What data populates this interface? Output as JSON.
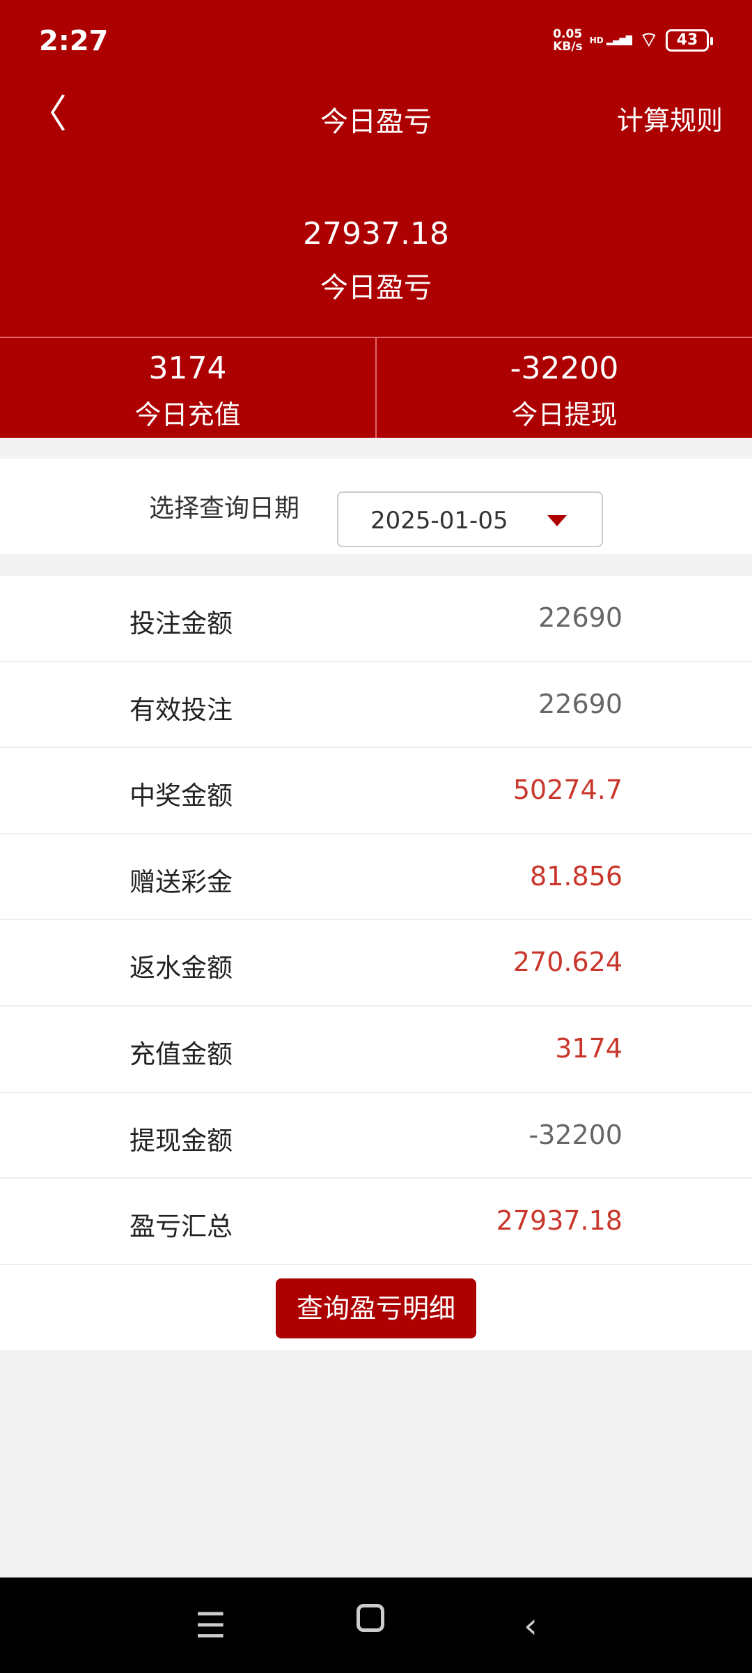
{
  "status_bar": {
    "time": "2:27",
    "net_speed": "0.05",
    "net_unit": "KB/s",
    "hd": "HD",
    "battery": "43"
  },
  "header": {
    "title": "今日盈亏",
    "rule_label": "计算规则"
  },
  "summary": {
    "value": "27937.18",
    "label": "今日盈亏"
  },
  "stats": [
    {
      "value": "3174",
      "label": "今日充值"
    },
    {
      "value": "-32200",
      "label": "今日提现"
    }
  ],
  "date_filter": {
    "label": "选择查询日期",
    "value": "2025-01-05"
  },
  "rows": [
    {
      "label": "投注金额",
      "value": "22690",
      "color": "#666666"
    },
    {
      "label": "有效投注",
      "value": "22690",
      "color": "#666666"
    },
    {
      "label": "中奖金额",
      "value": "50274.7",
      "color": "#c9372c"
    },
    {
      "label": "赠送彩金",
      "value": "81.856",
      "color": "#c9372c"
    },
    {
      "label": "返水金额",
      "value": "270.624",
      "color": "#c9372c"
    },
    {
      "label": "充值金额",
      "value": "3174",
      "color": "#c9372c"
    },
    {
      "label": "提现金额",
      "value": "-32200",
      "color": "#666666"
    },
    {
      "label": "盈亏汇总",
      "value": "27937.18",
      "color": "#c9372c"
    }
  ],
  "detail_button": "查询盈亏明细",
  "accent": "#ad0000"
}
